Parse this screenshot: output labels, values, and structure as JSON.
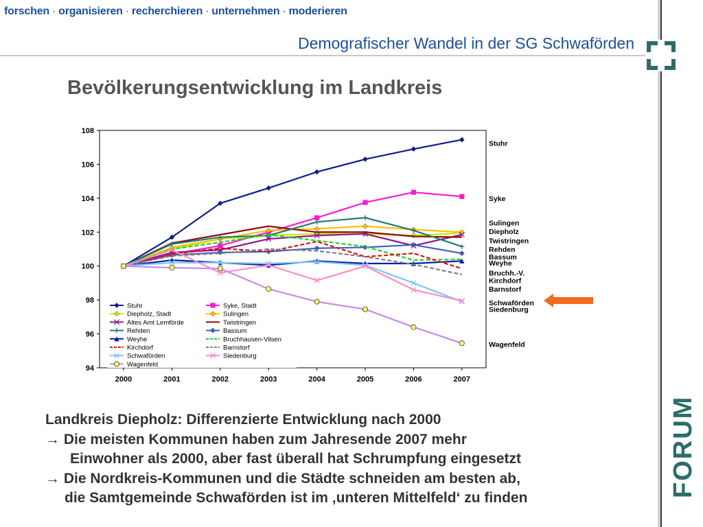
{
  "header": {
    "nav": [
      "forschen",
      "organisieren",
      "recherchieren",
      "unternehmen",
      "moderieren"
    ],
    "nav_separator": "·",
    "subtitle": "Demografischer Wandel in der SG Schwaförden"
  },
  "heading": "Bevölkerungsentwicklung im Landkreis",
  "brand": {
    "text": "FORUM",
    "color": "#2d6c69"
  },
  "bottom": {
    "line1": "Landkreis Diepholz: Differenzierte Entwicklung nach 2000",
    "line2": "→ Die meisten Kommunen haben zum Jahresende 2007 mehr",
    "line3": "Einwohner als 2000, aber fast überall hat Schrumpfung eingesetzt",
    "line4": "→ Die Nordkreis-Kommunen und die Städte schneiden am besten ab,",
    "line5": "die Samtgemeinde Schwaförden ist im ‚unteren Mittelfeld‘ zu finden"
  },
  "highlight_arrow_color": "#f26a1b",
  "chart_data": {
    "type": "line",
    "x": [
      "2000",
      "2001",
      "2002",
      "2003",
      "2004",
      "2005",
      "2006",
      "2007"
    ],
    "ylim": [
      94,
      108
    ],
    "yticks": [
      94,
      96,
      98,
      100,
      102,
      104,
      106,
      108
    ],
    "grid": false,
    "legend_position": "bottom-left inside",
    "series": [
      {
        "name": "Stuhr",
        "color": "#0d1d8c",
        "marker": "diamond",
        "dash": "",
        "values": [
          100,
          101.7,
          103.7,
          104.6,
          105.55,
          106.3,
          106.9,
          107.45
        ]
      },
      {
        "name": "Syke, Stadt",
        "color": "#ff1ad0",
        "marker": "square",
        "dash": "",
        "values": [
          100,
          100.7,
          101.2,
          102.0,
          102.85,
          103.75,
          104.35,
          104.1
        ]
      },
      {
        "name": "Diepholz, Stadt",
        "color": "#c6e812",
        "marker": "diamond",
        "dash": "",
        "values": [
          100,
          101.0,
          101.6,
          101.8,
          101.9,
          101.9,
          101.8,
          101.95
        ]
      },
      {
        "name": "Sulingen",
        "color": "#ffc000",
        "marker": "diamond",
        "dash": "",
        "values": [
          100,
          101.1,
          101.6,
          102.1,
          102.2,
          102.35,
          102.15,
          102.0
        ]
      },
      {
        "name": "Altes Amt Lemförde",
        "color": "#8c1a8c",
        "marker": "x",
        "dash": "",
        "values": [
          100,
          100.8,
          100.95,
          101.6,
          101.8,
          101.9,
          101.2,
          101.85
        ]
      },
      {
        "name": "Twistringen",
        "color": "#8b0d0d",
        "marker": "none",
        "dash": "",
        "values": [
          100,
          101.35,
          101.85,
          102.35,
          102.0,
          102.0,
          101.75,
          101.7
        ]
      },
      {
        "name": "Rehden",
        "color": "#1e7b78",
        "marker": "plus",
        "dash": "",
        "values": [
          100,
          101.3,
          101.7,
          101.8,
          102.6,
          102.85,
          102.1,
          101.15
        ]
      },
      {
        "name": "Bassum",
        "color": "#4060c8",
        "marker": "diamond",
        "dash": "",
        "values": [
          100,
          100.65,
          100.8,
          100.85,
          101.05,
          101.1,
          101.25,
          100.75
        ]
      },
      {
        "name": "Weyhe",
        "color": "#0a1aa8",
        "marker": "triangle",
        "dash": "",
        "values": [
          100,
          100.35,
          100.2,
          100.05,
          100.3,
          100.15,
          100.15,
          100.3
        ]
      },
      {
        "name": "Bruchhausen-Vilsen",
        "color": "#1fd42c",
        "marker": "none",
        "dash": "6,3",
        "values": [
          100,
          101.0,
          101.4,
          101.85,
          101.5,
          101.15,
          100.35,
          100.4
        ]
      },
      {
        "name": "Kirchdorf",
        "color": "#e01010",
        "marker": "none",
        "dash": "6,3",
        "values": [
          100,
          100.7,
          101.05,
          100.85,
          101.45,
          100.55,
          100.75,
          99.85
        ]
      },
      {
        "name": "Barnstorf",
        "color": "#808080",
        "marker": "none",
        "dash": "6,3",
        "values": [
          100,
          100.6,
          100.75,
          101.0,
          100.9,
          100.55,
          100.1,
          99.5
        ]
      },
      {
        "name": "Schwaförden",
        "color": "#7cc6f5",
        "marker": "x",
        "dash": "",
        "values": [
          100,
          100.2,
          100.2,
          100.15,
          100.25,
          100.05,
          99.0,
          97.9
        ]
      },
      {
        "name": "Siedenburg",
        "color": "#ff8cc8",
        "marker": "x",
        "dash": "",
        "values": [
          100,
          100.95,
          99.6,
          100.05,
          99.15,
          100.0,
          98.6,
          97.95
        ]
      },
      {
        "name": "Wagenfeld",
        "color": "#c38ce8",
        "marker": "circle",
        "dash": "",
        "values": [
          100,
          99.9,
          99.85,
          98.65,
          97.9,
          97.45,
          96.4,
          95.45
        ]
      }
    ],
    "end_labels": [
      {
        "text": "Stuhr",
        "value": 107.25
      },
      {
        "text": "Syke",
        "value": 104.0
      },
      {
        "text": "Sulingen",
        "value": 102.55
      },
      {
        "text": "Diepholz",
        "value": 102.05
      },
      {
        "text": "Twistringen",
        "value": 101.5
      },
      {
        "text": "Rehden",
        "value": 101.0
      },
      {
        "text": "Bassum",
        "value": 100.55
      },
      {
        "text": "Weyhe",
        "value": 100.2
      },
      {
        "text": "Bruchh.-V.",
        "value": 99.6
      },
      {
        "text": "Kirchdorf",
        "value": 99.15
      },
      {
        "text": "Barnstorf",
        "value": 98.65
      },
      {
        "text": "Schwaförden",
        "value": 97.85
      },
      {
        "text": "Siedenburg",
        "value": 97.45
      },
      {
        "text": "Wagenfeld",
        "value": 95.4
      }
    ]
  }
}
